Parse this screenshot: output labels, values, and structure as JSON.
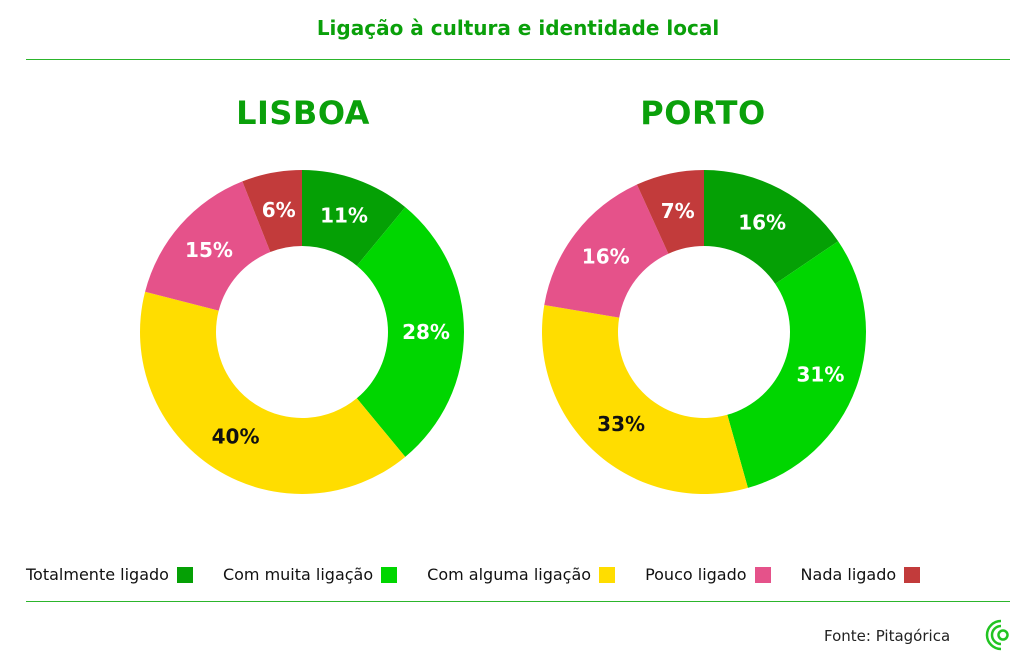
{
  "title": "Ligação à cultura e identidade local",
  "chart_data": [
    {
      "type": "pie",
      "variant": "donut",
      "title": "LISBOA",
      "categories": [
        "Totalmente ligado",
        "Com muita ligação",
        "Com alguma ligação",
        "Pouco ligado",
        "Nada ligado"
      ],
      "values": [
        11,
        28,
        40,
        15,
        6
      ],
      "labels": [
        "11%",
        "28%",
        "40%",
        "15%",
        "6%"
      ]
    },
    {
      "type": "pie",
      "variant": "donut",
      "title": "PORTO",
      "categories": [
        "Totalmente ligado",
        "Com muita ligação",
        "Com alguma ligação",
        "Pouco ligado",
        "Nada ligado"
      ],
      "values": [
        16,
        31,
        33,
        16,
        7
      ],
      "labels": [
        "16%",
        "31%",
        "33%",
        "16%",
        "7%"
      ]
    }
  ],
  "legend": [
    {
      "label": "Totalmente ligado",
      "color": "#05a005"
    },
    {
      "label": "Com muita ligação",
      "color": "#00d600"
    },
    {
      "label": "Com alguma ligação",
      "color": "#ffdd00"
    },
    {
      "label": "Pouco ligado",
      "color": "#e5528a"
    },
    {
      "label": "Nada ligado",
      "color": "#c23b3b"
    }
  ],
  "label_colors": [
    "#ffffff",
    "#ffffff",
    "#111111",
    "#ffffff",
    "#ffffff"
  ],
  "source": "Fonte: Pitagórica"
}
